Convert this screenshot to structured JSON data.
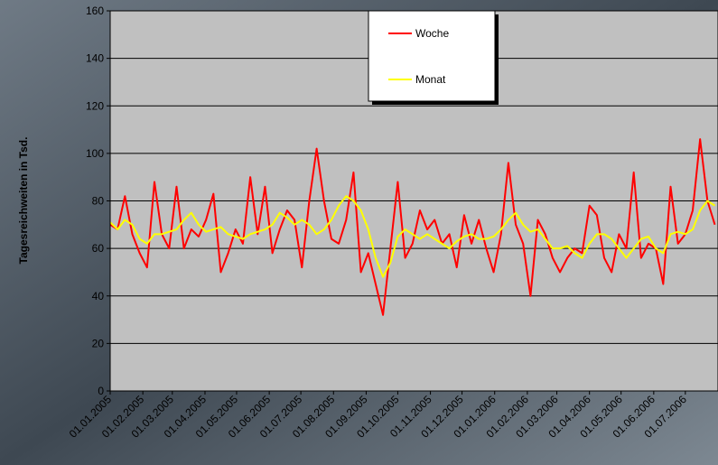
{
  "chart_data": {
    "type": "line",
    "y_label": "Tagesreichweiten in Tsd.",
    "x": [
      "01.01.2005",
      "08.01.2005",
      "15.01.2005",
      "22.01.2005",
      "29.01.2005",
      "05.02.2005",
      "12.02.2005",
      "19.02.2005",
      "26.02.2005",
      "05.03.2005",
      "12.03.2005",
      "19.03.2005",
      "26.03.2005",
      "02.04.2005",
      "09.04.2005",
      "16.04.2005",
      "23.04.2005",
      "30.04.2005",
      "07.05.2005",
      "14.05.2005",
      "21.05.2005",
      "28.05.2005",
      "04.06.2005",
      "11.06.2005",
      "18.06.2005",
      "25.06.2005",
      "02.07.2005",
      "09.07.2005",
      "16.07.2005",
      "23.07.2005",
      "30.07.2005",
      "06.08.2005",
      "13.08.2005",
      "20.08.2005",
      "27.08.2005",
      "03.09.2005",
      "10.09.2005",
      "17.09.2005",
      "24.09.2005",
      "01.10.2005",
      "08.10.2005",
      "15.10.2005",
      "22.10.2005",
      "29.10.2005",
      "05.11.2005",
      "12.11.2005",
      "19.11.2005",
      "26.11.2005",
      "03.12.2005",
      "10.12.2005",
      "17.12.2005",
      "24.12.2005",
      "31.12.2005",
      "07.01.2006",
      "14.01.2006",
      "21.01.2006",
      "28.01.2006",
      "04.02.2006",
      "11.02.2006",
      "18.02.2006",
      "25.02.2006",
      "04.03.2006",
      "11.03.2006",
      "18.03.2006",
      "25.03.2006",
      "01.04.2006",
      "08.04.2006",
      "15.04.2006",
      "22.04.2006",
      "29.04.2006",
      "06.05.2006",
      "13.05.2006",
      "20.05.2006",
      "27.05.2006",
      "03.06.2006",
      "10.06.2006",
      "17.06.2006",
      "24.06.2006",
      "01.07.2006",
      "08.07.2006",
      "15.07.2006",
      "22.07.2006",
      "29.07.2006"
    ],
    "series": [
      {
        "name": "Woche",
        "color": "#ff0000",
        "values": [
          70,
          68,
          82,
          66,
          58,
          52,
          88,
          66,
          60,
          86,
          60,
          68,
          65,
          72,
          83,
          50,
          58,
          68,
          62,
          90,
          66,
          86,
          58,
          68,
          76,
          72,
          52,
          80,
          102,
          80,
          64,
          62,
          72,
          92,
          50,
          58,
          45,
          32,
          60,
          88,
          56,
          62,
          76,
          68,
          72,
          62,
          66,
          52,
          74,
          62,
          72,
          60,
          50,
          66,
          96,
          70,
          62,
          40,
          72,
          66,
          56,
          50,
          56,
          60,
          58,
          78,
          74,
          56,
          50,
          66,
          60,
          92,
          56,
          62,
          60,
          45,
          86,
          62,
          66,
          76,
          106,
          80,
          70
        ]
      },
      {
        "name": "Monat",
        "color": "#ffff00",
        "values": [
          71,
          68,
          72,
          70,
          64,
          62,
          66,
          66,
          67,
          68,
          72,
          75,
          70,
          67,
          68,
          69,
          66,
          65,
          64,
          66,
          67,
          68,
          70,
          75,
          73,
          70,
          72,
          70,
          66,
          68,
          72,
          78,
          82,
          80,
          76,
          68,
          56,
          48,
          54,
          65,
          68,
          66,
          64,
          66,
          64,
          62,
          60,
          63,
          65,
          66,
          64,
          64,
          65,
          68,
          72,
          75,
          70,
          67,
          68,
          64,
          60,
          60,
          61,
          58,
          56,
          62,
          66,
          66,
          64,
          60,
          56,
          60,
          64,
          65,
          60,
          58,
          66,
          67,
          66,
          68,
          76,
          80,
          78
        ]
      }
    ],
    "xlim": [
      "01.01.2005",
      "01.08.2006"
    ],
    "xticks": [
      "01.01.2005",
      "01.02.2005",
      "01.03.2005",
      "01.04.2005",
      "01.05.2005",
      "01.06.2005",
      "01.07.2005",
      "01.08.2005",
      "01.09.2005",
      "01.10.2005",
      "01.11.2005",
      "01.12.2005",
      "01.01.2006",
      "01.02.2006",
      "01.03.2006",
      "01.04.2006",
      "01.05.2006",
      "01.06.2006",
      "01.07.2006"
    ],
    "ylim": [
      0,
      160
    ],
    "yticks": [
      0,
      20,
      40,
      60,
      80,
      100,
      120,
      140,
      160
    ],
    "grid": true
  }
}
